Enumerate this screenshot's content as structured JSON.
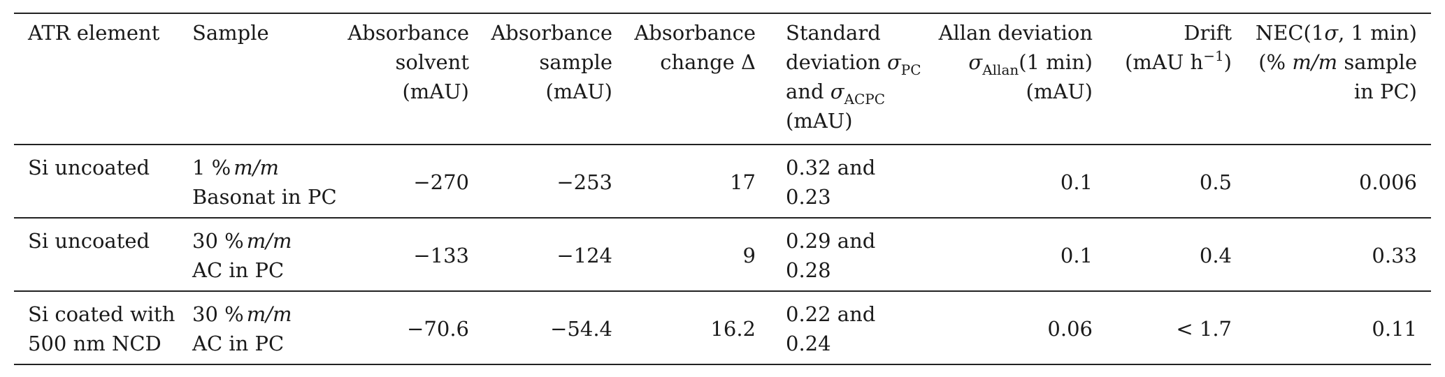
{
  "table": {
    "headers": {
      "atr_element": "ATR element",
      "sample": "Sample",
      "abs_solvent": [
        "Absorbance",
        "solvent",
        "(mAU)"
      ],
      "abs_sample": [
        "Absorbance",
        "sample",
        "(mAU)"
      ],
      "abs_change": [
        "Absorbance",
        "change Δ"
      ],
      "std_dev": {
        "line1": "Standard",
        "line2_text": "deviation ",
        "line2_sym": "σ",
        "line2_sub": "PC",
        "line3_text": "and ",
        "line3_sym": "σ",
        "line3_sub": "ACPC",
        "line4": "(mAU)"
      },
      "allan": {
        "line1": "Allan deviation",
        "line2_sym": "σ",
        "line2_sub": "Allan",
        "line2_rest": "(1 min)",
        "line3": "(mAU)"
      },
      "drift": {
        "line1": "Drift",
        "line2_pre": "(mAU h",
        "line2_sup": "−1",
        "line2_post": ")"
      },
      "nec": {
        "line1_pre": "NEC(1",
        "line1_sym": "σ",
        "line1_post": ", 1 min)",
        "line2_pre": "(% ",
        "line2_math": "m/m",
        "line2_post": " sample",
        "line3": "in PC)"
      }
    },
    "rows": [
      {
        "atr_element": [
          "Si uncoated"
        ],
        "sample_pct": "1 %",
        "sample_mm": "m/m",
        "sample_name": "Basonat in PC",
        "abs_solvent": "−270",
        "abs_sample": "−253",
        "abs_change": "17",
        "std_dev": [
          "0.32 and",
          "0.23"
        ],
        "allan": "0.1",
        "drift": "0.5",
        "nec": "0.006"
      },
      {
        "atr_element": [
          "Si uncoated"
        ],
        "sample_pct": "30 %",
        "sample_mm": "m/m",
        "sample_name": "AC in PC",
        "abs_solvent": "−133",
        "abs_sample": "−124",
        "abs_change": "9",
        "std_dev": [
          "0.29 and",
          "0.28"
        ],
        "allan": "0.1",
        "drift": "0.4",
        "nec": "0.33"
      },
      {
        "atr_element": [
          "Si coated with",
          "500 nm NCD"
        ],
        "sample_pct": "30 %",
        "sample_mm": "m/m",
        "sample_name": "AC in PC",
        "abs_solvent": "−70.6",
        "abs_sample": "−54.4",
        "abs_change": "16.2",
        "std_dev": [
          "0.22 and",
          "0.24"
        ],
        "allan": "0.06",
        "drift": "< 1.7",
        "nec": "0.11"
      }
    ]
  }
}
